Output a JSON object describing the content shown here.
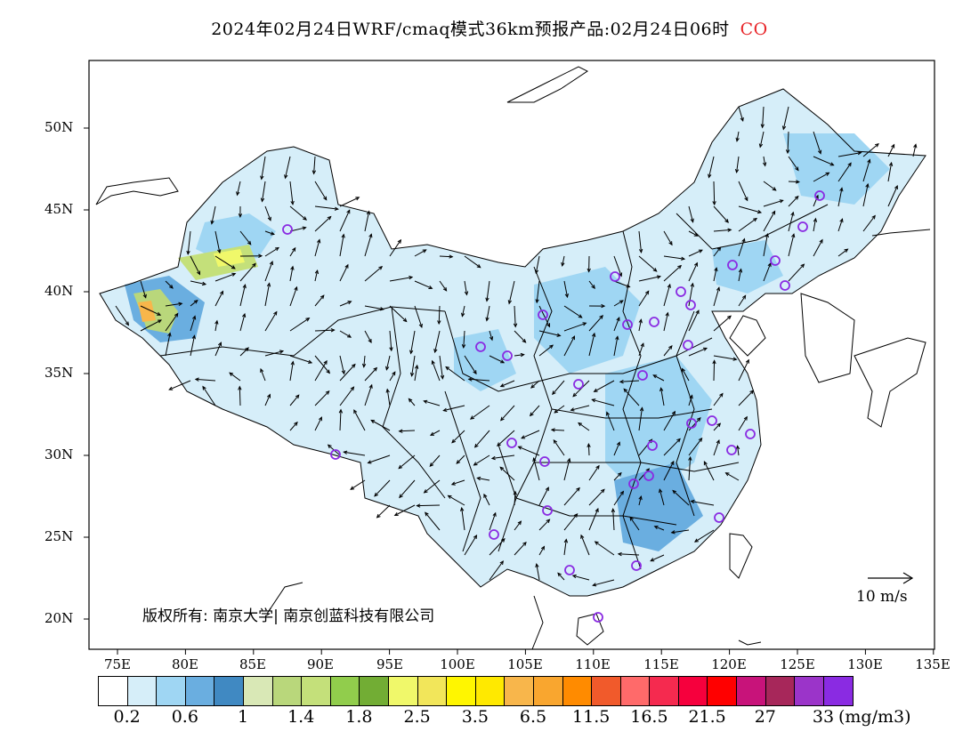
{
  "title": {
    "text": "2024年02月24日WRF/cmaq模式36km预报产品:02月24日06时",
    "species": "CO"
  },
  "axes": {
    "lat_labels": [
      "50N",
      "45N",
      "40N",
      "35N",
      "30N",
      "25N",
      "20N"
    ],
    "lon_labels": [
      "75E",
      "80E",
      "85E",
      "90E",
      "95E",
      "100E",
      "105E",
      "110E",
      "115E",
      "120E",
      "125E",
      "130E",
      "135E"
    ]
  },
  "copyright": "版权所有: 南京大学| 南京创蓝科技有限公司",
  "wind_scale": {
    "label": "10 m/s",
    "arrow_icon": "reference-arrow-icon"
  },
  "colorbar": {
    "colors": [
      "#ffffff",
      "#d6eef9",
      "#9fd6f3",
      "#6aaee0",
      "#4089c2",
      "#d9e8b6",
      "#b9d77b",
      "#c4e07a",
      "#91cd4c",
      "#72ad34",
      "#f0f86a",
      "#f2e65a",
      "#fff600",
      "#ffe900",
      "#f8b64b",
      "#f9a62f",
      "#ff8b00",
      "#f15a2b",
      "#ff6a6a",
      "#f52a4f",
      "#f6003d",
      "#ff0000",
      "#c8137a",
      "#a7275a",
      "#9b34c9",
      "#8a2be2"
    ],
    "tick_labels": [
      "0.2",
      "0.6",
      "1",
      "1.4",
      "1.8",
      "2.5",
      "3.5",
      "6.5",
      "11.5",
      "16.5",
      "21.5",
      "27",
      "33"
    ],
    "unit": "(mg/m3)"
  },
  "stations_icon": "station-circle-icon",
  "coastline_icon": "coastline-icon",
  "border_icon": "province-border-icon"
}
